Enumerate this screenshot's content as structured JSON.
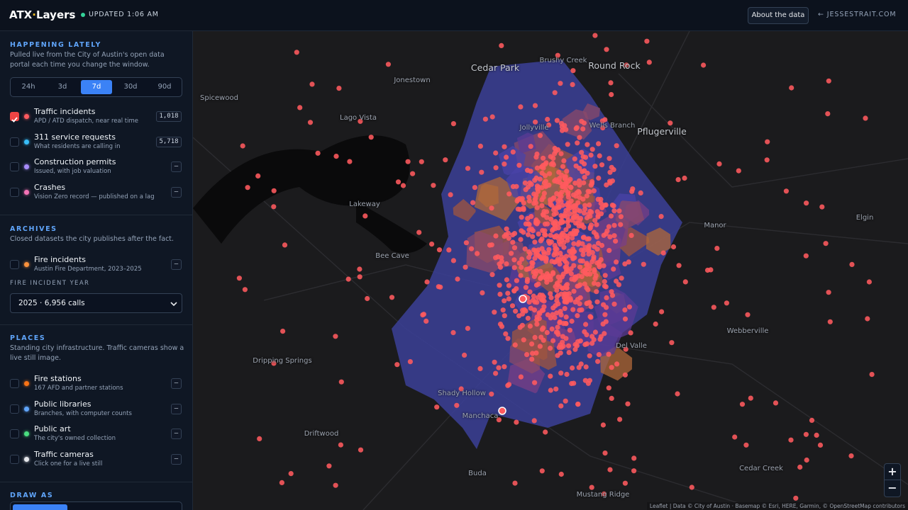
{
  "header": {
    "brand": {
      "left": "ATX",
      "separator": "·",
      "right": "Layers"
    },
    "status": "UPDATED 1:06 AM",
    "about_button": "About the data",
    "author_link": "← JESSESTRAIT.COM"
  },
  "sidebar": {
    "happening": {
      "title": "HAPPENING LATELY",
      "description": "Pulled live from the City of Austin's open data portal each time you change the window.",
      "windows": [
        "24h",
        "3d",
        "7d",
        "30d",
        "90d"
      ],
      "active_window": 2,
      "layers": [
        {
          "name": "Traffic incidents",
          "description": "APD / ATD dispatch, near real time",
          "count": "1,018",
          "checked": true,
          "color": "#ff5a5f"
        },
        {
          "name": "311 service requests",
          "description": "What residents are calling in",
          "count": "5,718",
          "checked": false,
          "color": "#38bdf8"
        },
        {
          "name": "Construction permits",
          "description": "Issued, with job valuation",
          "count": "–",
          "checked": false,
          "color": "#a78bfa"
        },
        {
          "name": "Crashes",
          "description": "Vision Zero record — published on a lag",
          "count": "–",
          "checked": false,
          "color": "#f472b6"
        }
      ]
    },
    "archives": {
      "title": "ARCHIVES",
      "description": "Closed datasets the city publishes after the fact.",
      "layers": [
        {
          "name": "Fire incidents",
          "description": "Austin Fire Department, 2023–2025",
          "count": "–",
          "checked": false,
          "color": "#fb923c"
        }
      ],
      "year_label": "FIRE INCIDENT YEAR",
      "year_select": "2025 · 6,956 calls"
    },
    "places": {
      "title": "PLACES",
      "description": "Standing city infrastructure. Traffic cameras show a live still image.",
      "layers": [
        {
          "name": "Fire stations",
          "description": "167 AFD and partner stations",
          "count": "–",
          "checked": false,
          "color": "#f97316"
        },
        {
          "name": "Public libraries",
          "description": "Branches, with computer counts",
          "count": "–",
          "checked": false,
          "color": "#60a5fa"
        },
        {
          "name": "Public art",
          "description": "The city's owned collection",
          "count": "–",
          "checked": false,
          "color": "#4ade80"
        },
        {
          "name": "Traffic cameras",
          "description": "Click one for a live still",
          "count": "–",
          "checked": false,
          "color": "#e5e7eb"
        }
      ]
    },
    "draw_as": {
      "title": "DRAW AS"
    }
  },
  "map": {
    "labels": [
      "Cedar Park",
      "Brushy Creek",
      "Round Rock",
      "Jonestown",
      "Spicewood",
      "Lago Vista",
      "Jollyville",
      "Wells Branch",
      "Pflugerville",
      "Lakeway",
      "Bee Cave",
      "Manor",
      "Elgin",
      "Webberville",
      "Del Valle",
      "Dripping Springs",
      "Shady Hollow",
      "Manchaca",
      "Driftwood",
      "Buda",
      "Cedar Creek",
      "Mustang Ridge"
    ],
    "zoom_in": "+",
    "zoom_out": "−",
    "attribution": "Leaflet | Data © City of Austin · Basemap © Esri, HERE, Garmin, © OpenStreetMap contributors"
  }
}
